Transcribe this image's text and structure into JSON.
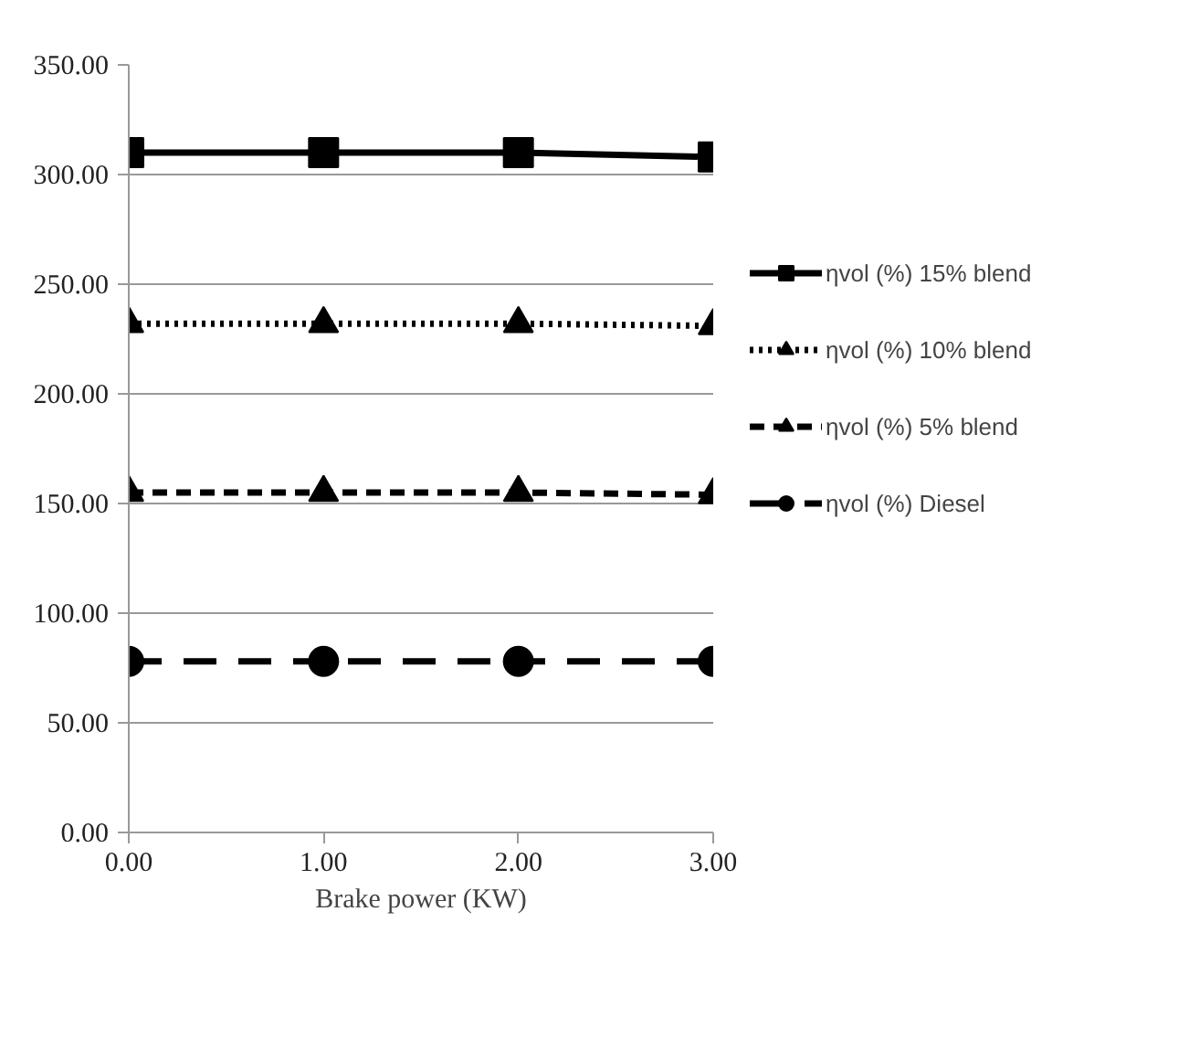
{
  "chart_data": {
    "type": "line",
    "xlabel": "Brake power (KW)",
    "x": [
      0,
      1,
      2,
      3
    ],
    "xlim": [
      0,
      3
    ],
    "xticks": [
      {
        "value": 0,
        "label": "0.00"
      },
      {
        "value": 1,
        "label": "1.00"
      },
      {
        "value": 2,
        "label": "2.00"
      },
      {
        "value": 3,
        "label": "3.00"
      }
    ],
    "ylim": [
      0,
      350
    ],
    "yticks": [
      {
        "value": 0,
        "label": "0.00"
      },
      {
        "value": 50,
        "label": "50.00"
      },
      {
        "value": 100,
        "label": "100.00"
      },
      {
        "value": 150,
        "label": "150.00"
      },
      {
        "value": 200,
        "label": "200.00"
      },
      {
        "value": 250,
        "label": "250.00"
      },
      {
        "value": 300,
        "label": "300.00"
      },
      {
        "value": 350,
        "label": "350.00"
      }
    ],
    "grid": "y",
    "legend": "right",
    "series": [
      {
        "name": "ηvol (%) 15% blend",
        "color": "#000000",
        "marker": "square",
        "line_style": "solid",
        "values": [
          310,
          310,
          310,
          308
        ]
      },
      {
        "name": "ηvol (%) 10% blend",
        "color": "#000000",
        "marker": "triangle",
        "line_style": "dotted",
        "values": [
          232,
          232,
          232,
          231
        ]
      },
      {
        "name": "ηvol (%) 5% blend",
        "color": "#000000",
        "marker": "triangle",
        "line_style": "dashed",
        "values": [
          155,
          155,
          155,
          154
        ]
      },
      {
        "name": "ηvol (%) Diesel",
        "color": "#000000",
        "marker": "circle",
        "line_style": "dashed",
        "values": [
          78,
          78,
          78,
          78
        ]
      }
    ]
  }
}
